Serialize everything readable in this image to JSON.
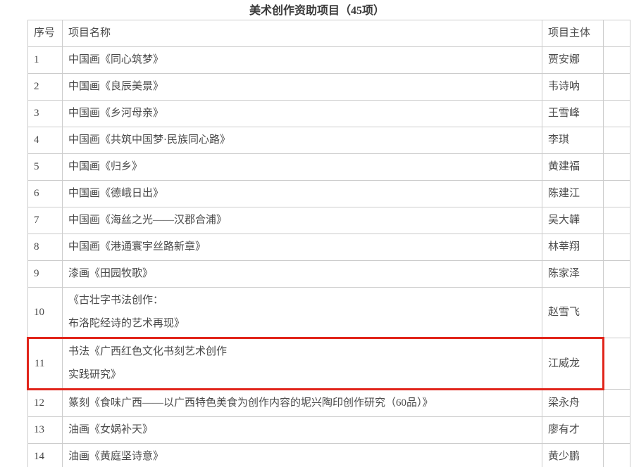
{
  "page": {
    "title": "美术创作资助项目（45项）"
  },
  "highlight": {
    "color": "#e1251b",
    "highlighted_row_no": "11"
  },
  "table": {
    "columns": [
      "序号",
      "项目名称",
      "项目主体",
      ""
    ],
    "rows": [
      {
        "no": "1",
        "project": "中国画《同心筑梦》",
        "owner": "贾安娜",
        "highlighted": false
      },
      {
        "no": "2",
        "project": "中国画《良辰美景》",
        "owner": "韦诗呐",
        "highlighted": false
      },
      {
        "no": "3",
        "project": "中国画《乡河母亲》",
        "owner": "王雪峰",
        "highlighted": false
      },
      {
        "no": "4",
        "project": "中国画《共筑中国梦·民族同心路》",
        "owner": "李琪",
        "highlighted": false
      },
      {
        "no": "5",
        "project": "中国画《归乡》",
        "owner": "黄建福",
        "highlighted": false
      },
      {
        "no": "6",
        "project": "中国画《德峨日出》",
        "owner": "陈建江",
        "highlighted": false
      },
      {
        "no": "7",
        "project": "中国画《海丝之光——汉郡合浦》",
        "owner": "吴大韡",
        "highlighted": false
      },
      {
        "no": "8",
        "project": "中国画《港通寰宇丝路新章》",
        "owner": "林莘翔",
        "highlighted": false
      },
      {
        "no": "9",
        "project": "漆画《田园牧歌》",
        "owner": "陈家泽",
        "highlighted": false
      },
      {
        "no": "10",
        "project": "《古壮字书法创作：\n布洛陀经诗的艺术再现》",
        "owner": "赵雪飞",
        "highlighted": false
      },
      {
        "no": "11",
        "project": "书法《广西红色文化书刻艺术创作\n实践研究》",
        "owner": "江威龙",
        "highlighted": true
      },
      {
        "no": "12",
        "project": "篆刻《食味广西——以广西特色美食为创作内容的坭兴陶印创作研究（60品）》",
        "owner": "梁永舟",
        "highlighted": false
      },
      {
        "no": "13",
        "project": "油画《女娲补天》",
        "owner": "廖有才",
        "highlighted": false
      },
      {
        "no": "14",
        "project": "油画《黄庭坚诗意》",
        "owner": "黄少鹏",
        "highlighted": false
      }
    ]
  }
}
